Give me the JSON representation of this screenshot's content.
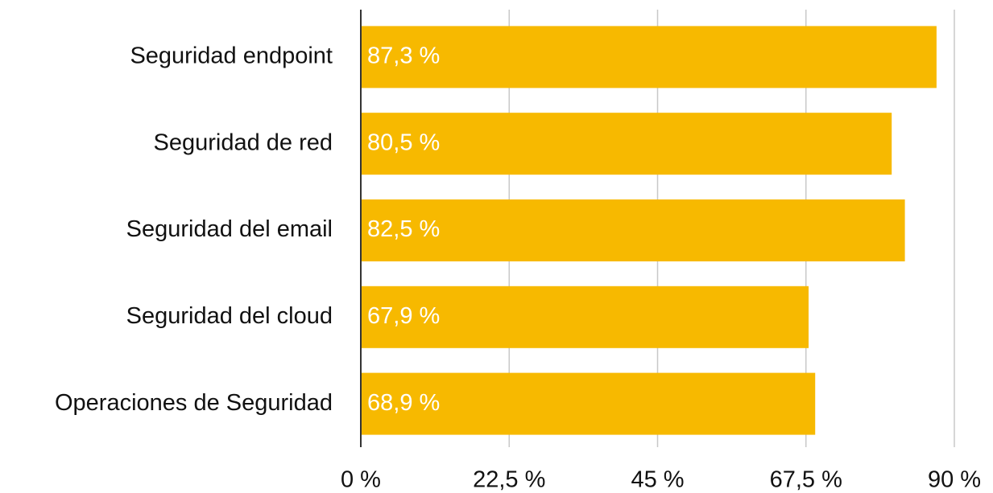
{
  "chart_data": {
    "type": "barh",
    "categories": [
      "Seguridad endpoint",
      "Seguridad de red",
      "Seguridad del email",
      "Seguridad del cloud",
      "Operaciones de Seguridad"
    ],
    "values": [
      87.3,
      80.5,
      82.5,
      67.9,
      68.9
    ],
    "value_labels": [
      "87,3 %",
      "80,5 %",
      "82,5 %",
      "67,9 %",
      "68,9 %"
    ],
    "color": "#f7b900",
    "xlim": [
      0,
      90
    ],
    "xticks": [
      {
        "value": 0,
        "label": "0 %"
      },
      {
        "value": 22.5,
        "label": "22,5 %"
      },
      {
        "value": 45,
        "label": "45 %"
      },
      {
        "value": 67.5,
        "label": "67,5 %"
      },
      {
        "value": 90,
        "label": "90 %"
      }
    ],
    "grid": true
  }
}
